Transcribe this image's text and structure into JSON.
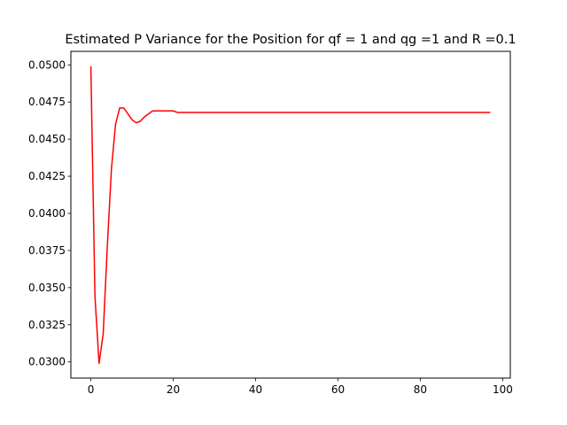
{
  "chart_data": {
    "type": "line",
    "title": "Estimated P Variance for the Position for qf = 1 and qg =1 and  R =0.1",
    "xlabel": "",
    "ylabel": "",
    "xlim": [
      -4.85,
      101.85
    ],
    "ylim": [
      0.02891,
      0.05091
    ],
    "x_ticks": [
      0,
      20,
      40,
      60,
      80,
      100
    ],
    "x_tick_labels": [
      "0",
      "20",
      "40",
      "60",
      "80",
      "100"
    ],
    "y_ticks": [
      0.03,
      0.0325,
      0.035,
      0.0375,
      0.04,
      0.0425,
      0.045,
      0.0475,
      0.05
    ],
    "y_tick_labels": [
      "0.0300",
      "0.0325",
      "0.0350",
      "0.0375",
      "0.0400",
      "0.0425",
      "0.0450",
      "0.0475",
      "0.0500"
    ],
    "grid": false,
    "series": [
      {
        "color": "#ff0000",
        "x": [
          0,
          1,
          2,
          3,
          4,
          5,
          6,
          7,
          8,
          9,
          10,
          11,
          12,
          13,
          14,
          15,
          16,
          17,
          18,
          19,
          20,
          21,
          22,
          23,
          24,
          25,
          26,
          28,
          30,
          35,
          40,
          50,
          60,
          70,
          80,
          90,
          97
        ],
        "values": [
          0.0499,
          0.0344,
          0.0299,
          0.0319,
          0.0378,
          0.043,
          0.046,
          0.0471,
          0.0471,
          0.0467,
          0.0463,
          0.0461,
          0.0462,
          0.0465,
          0.0467,
          0.0469,
          0.0469,
          0.0469,
          0.0469,
          0.0469,
          0.0469,
          0.0468,
          0.0468,
          0.0468,
          0.0468,
          0.0468,
          0.0468,
          0.0468,
          0.0468,
          0.0468,
          0.0468,
          0.0468,
          0.0468,
          0.0468,
          0.0468,
          0.0468,
          0.0468
        ]
      }
    ]
  }
}
